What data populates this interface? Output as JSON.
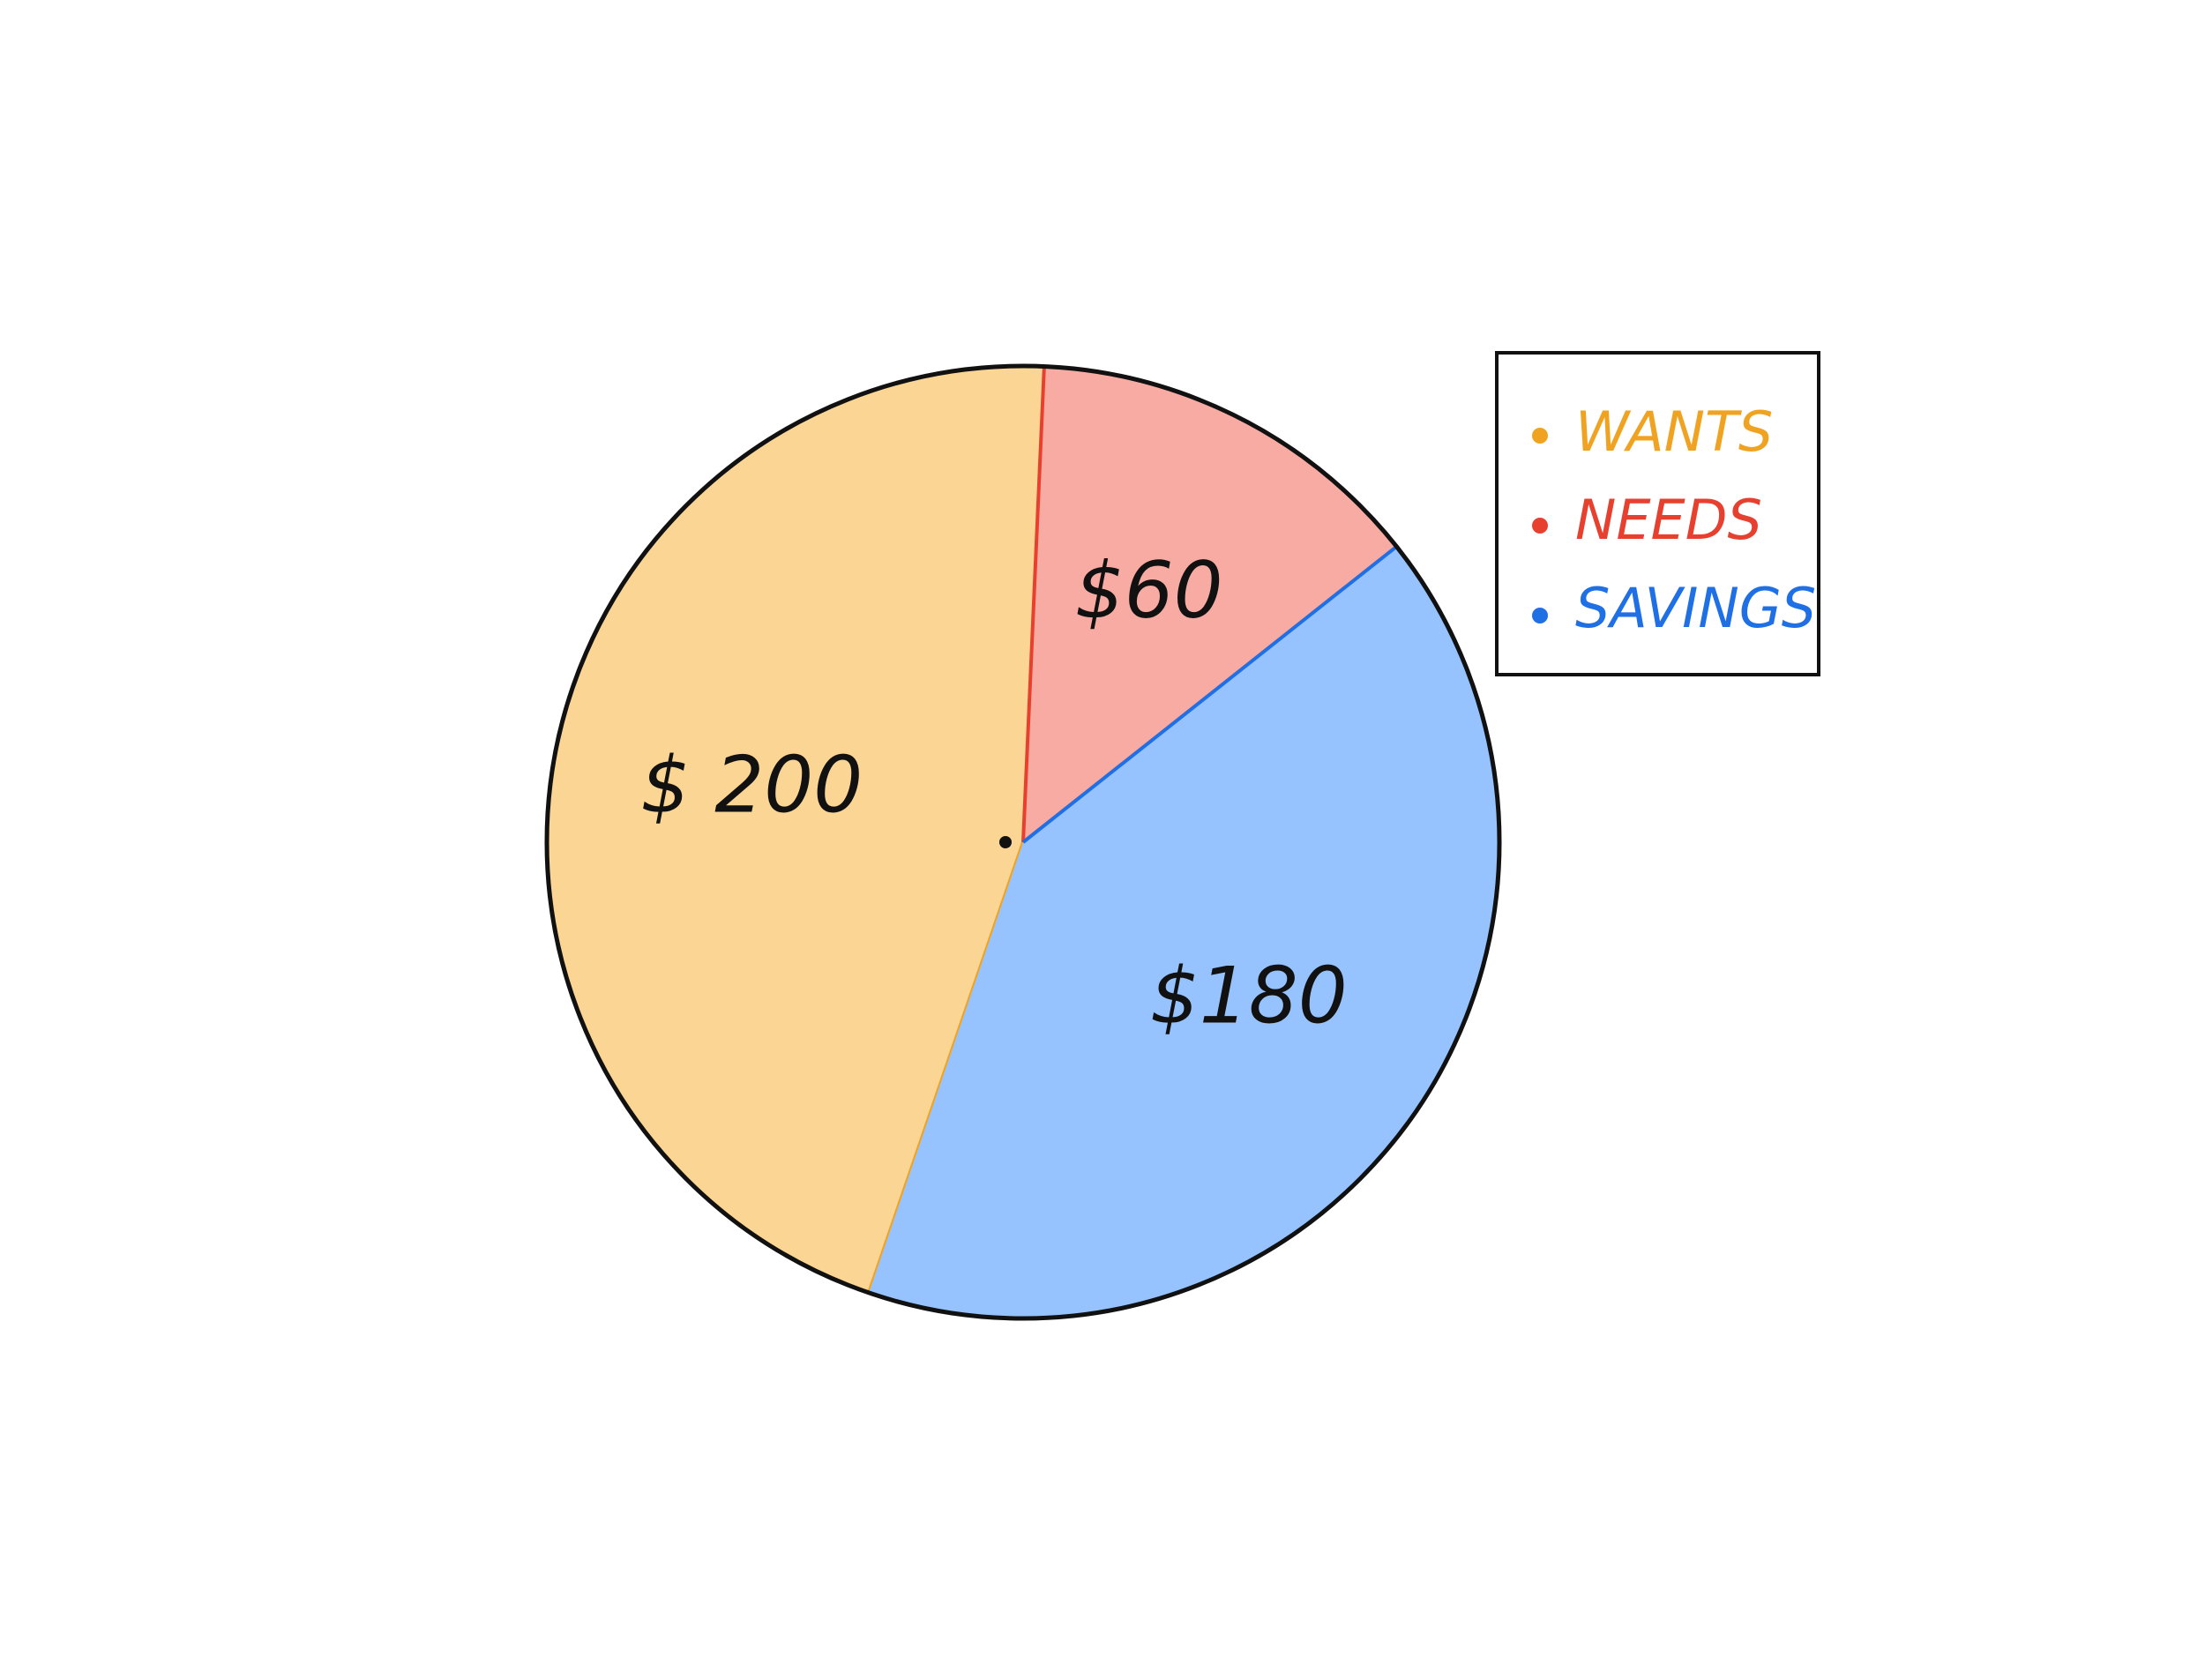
{
  "chart_data": {
    "type": "pie",
    "title": "",
    "categories": [
      "WANTS",
      "NEEDS",
      "SAVINGS"
    ],
    "values": [
      200,
      60,
      180
    ],
    "value_labels": [
      "$ 200",
      "$60",
      "$180"
    ],
    "colors": {
      "WANTS": "#FBD593",
      "NEEDS": "#F7ABA3",
      "SAVINGS": "#96C3FD"
    },
    "edge_colors": {
      "WANTS": "#F0A321",
      "NEEDS": "#E8402F",
      "SAVINGS": "#1F6FE5"
    },
    "legend": {
      "placement": "top-right",
      "entries": [
        {
          "name": "WANTS",
          "color": "#F0A321"
        },
        {
          "name": "NEEDS",
          "color": "#E8402F"
        },
        {
          "name": "SAVINGS",
          "color": "#1F6FE5"
        }
      ]
    }
  }
}
